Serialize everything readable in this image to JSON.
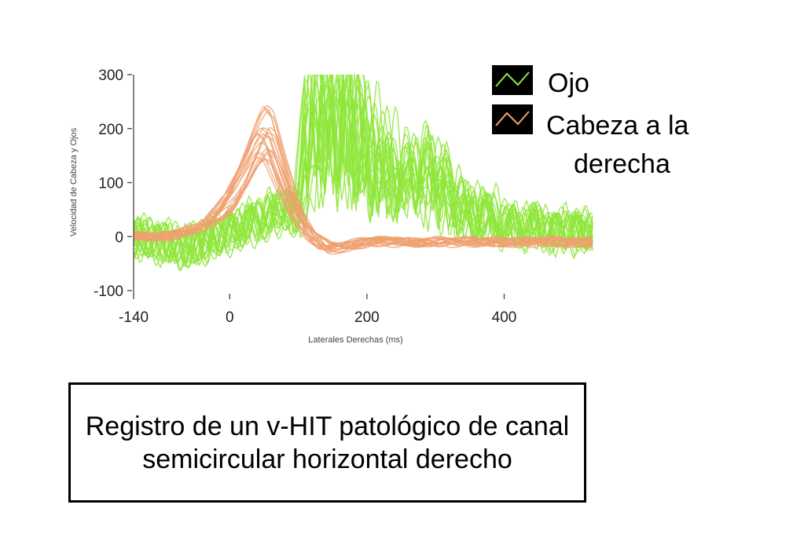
{
  "chart_data": {
    "type": "line",
    "ylabel": "Velocidad de Cabeza y Ojos",
    "xlabel": "Laterales Derechas (ms)",
    "xlim": [
      -140,
      530
    ],
    "ylim": [
      -100,
      300
    ],
    "xticks": [
      -140,
      0,
      200,
      400
    ],
    "yticks": [
      300,
      200,
      100,
      0,
      -100
    ],
    "grid": false,
    "legend_position": "top-right",
    "series": [
      {
        "name": "Ojo",
        "color": "#8ee63a",
        "trace_count": 20,
        "x": [
          -140,
          -100,
          -60,
          -20,
          0,
          20,
          40,
          60,
          80,
          90,
          100,
          110,
          120,
          130,
          140,
          150,
          160,
          170,
          180,
          190,
          200,
          220,
          240,
          260,
          280,
          300,
          320,
          340,
          360,
          380,
          400,
          420,
          440,
          460,
          480,
          500,
          520
        ],
        "values": [
          0,
          -10,
          -20,
          0,
          10,
          20,
          30,
          40,
          55,
          50,
          30,
          150,
          300,
          300,
          300,
          300,
          300,
          300,
          300,
          280,
          220,
          180,
          160,
          140,
          170,
          150,
          120,
          60,
          60,
          50,
          30,
          20,
          30,
          20,
          10,
          20,
          10
        ]
      },
      {
        "name": "Cabeza a la derecha",
        "color": "#f0a070",
        "trace_count": 20,
        "x": [
          -140,
          -100,
          -60,
          -40,
          -20,
          0,
          20,
          40,
          50,
          60,
          80,
          100,
          120,
          140,
          160,
          200,
          260,
          320,
          400,
          460,
          520
        ],
        "values": [
          0,
          0,
          10,
          20,
          40,
          70,
          120,
          180,
          200,
          190,
          110,
          40,
          0,
          -20,
          -20,
          -10,
          -10,
          -10,
          -10,
          -10,
          -10
        ]
      }
    ]
  },
  "legend": {
    "items": [
      {
        "label": "Ojo",
        "color": "#8ee63a"
      },
      {
        "label_lines": [
          "Cabeza a la",
          "derecha"
        ],
        "color": "#f0a070"
      }
    ]
  },
  "caption": {
    "text": "Registro de un v-HIT patológico de canal semicircular horizontal derecho"
  }
}
